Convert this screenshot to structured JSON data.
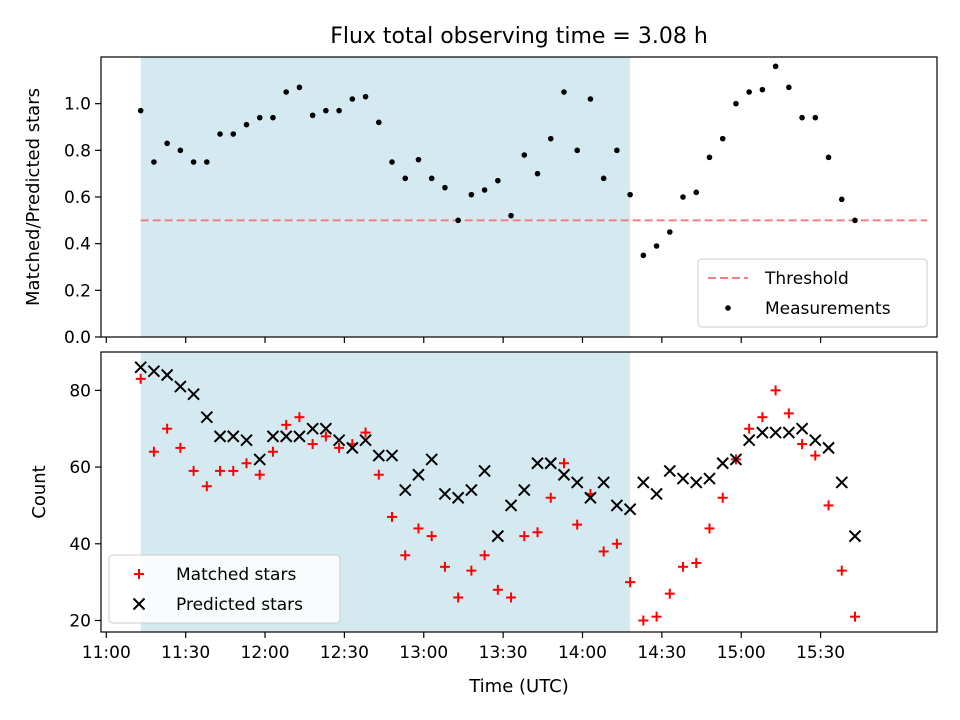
{
  "chart_data": {
    "type": "scatter",
    "title": "Flux total observing time = 3.08 h",
    "x_unit": "Time (UTC)",
    "xlabel": "Time (UTC)",
    "x_ticks": [
      "11:00",
      "11:30",
      "12:00",
      "12:30",
      "13:00",
      "13:30",
      "14:00",
      "14:30",
      "15:00",
      "15:30"
    ],
    "xlim": [
      "10:58",
      "16:14"
    ],
    "x": [
      "11:13",
      "11:18",
      "11:23",
      "11:28",
      "11:33",
      "11:38",
      "11:43",
      "11:48",
      "11:53",
      "11:58",
      "12:03",
      "12:08",
      "12:13",
      "12:18",
      "12:23",
      "12:28",
      "12:33",
      "12:38",
      "12:43",
      "12:48",
      "12:53",
      "12:58",
      "13:03",
      "13:08",
      "13:13",
      "13:18",
      "13:23",
      "13:28",
      "13:33",
      "13:38",
      "13:43",
      "13:48",
      "13:53",
      "13:58",
      "14:03",
      "14:08",
      "14:13",
      "14:18",
      "14:23",
      "14:28",
      "14:33",
      "14:38",
      "14:43",
      "14:48",
      "14:53",
      "14:58",
      "15:03",
      "15:08",
      "15:13",
      "15:18",
      "15:23",
      "15:28",
      "15:33",
      "15:38",
      "15:43"
    ],
    "shaded_region": {
      "x_start": "11:13",
      "x_end": "14:18",
      "color": "#d4eaf0"
    },
    "panels": [
      {
        "ylabel": "Matched/Predicted stars",
        "ylim": [
          0,
          1.2
        ],
        "y_ticks": [
          "0.0",
          "0.2",
          "0.4",
          "0.6",
          "0.8",
          "1.0"
        ],
        "legend_position": "lower-right",
        "threshold": {
          "name": "Threshold",
          "value": 0.5,
          "color": "#f08080",
          "style": "dashed"
        },
        "series": [
          {
            "name": "Measurements",
            "marker": "dot",
            "color": "#000000",
            "values": [
              0.97,
              0.75,
              0.83,
              0.8,
              0.75,
              0.75,
              0.87,
              0.87,
              0.91,
              0.94,
              0.94,
              1.05,
              1.07,
              0.95,
              0.97,
              0.97,
              1.02,
              1.03,
              0.92,
              0.75,
              0.68,
              0.76,
              0.68,
              0.64,
              0.5,
              0.61,
              0.63,
              0.67,
              0.52,
              0.78,
              0.7,
              0.85,
              1.05,
              0.8,
              1.02,
              0.68,
              0.8,
              0.61,
              0.35,
              0.39,
              0.45,
              0.6,
              0.62,
              0.77,
              0.85,
              1.0,
              1.05,
              1.06,
              1.16,
              1.07,
              0.94,
              0.94,
              0.77,
              0.59,
              0.5
            ]
          }
        ]
      },
      {
        "ylabel": "Count",
        "ylim": [
          17,
          90
        ],
        "y_ticks": [
          "20",
          "40",
          "60",
          "80"
        ],
        "legend_position": "lower-left",
        "series": [
          {
            "name": "Matched stars",
            "marker": "plus",
            "color": "#ff0000",
            "values": [
              83,
              64,
              70,
              65,
              59,
              55,
              59,
              59,
              61,
              58,
              64,
              71,
              73,
              66,
              68,
              65,
              66,
              69,
              58,
              47,
              37,
              44,
              42,
              34,
              26,
              33,
              37,
              28,
              26,
              42,
              43,
              52,
              61,
              45,
              53,
              38,
              40,
              30,
              20,
              21,
              27,
              34,
              35,
              44,
              52,
              62,
              70,
              73,
              80,
              74,
              66,
              63,
              50,
              33,
              21
            ]
          },
          {
            "name": "Predicted stars",
            "marker": "x",
            "color": "#000000",
            "values": [
              86,
              85,
              84,
              81,
              79,
              73,
              68,
              68,
              67,
              62,
              68,
              68,
              68,
              70,
              70,
              67,
              65,
              67,
              63,
              63,
              54,
              58,
              62,
              53,
              52,
              54,
              59,
              42,
              50,
              54,
              61,
              61,
              58,
              56,
              52,
              56,
              50,
              49,
              56,
              53,
              59,
              57,
              56,
              57,
              61,
              62,
              67,
              69,
              69,
              69,
              70,
              67,
              65,
              56,
              42
            ]
          }
        ]
      }
    ]
  }
}
